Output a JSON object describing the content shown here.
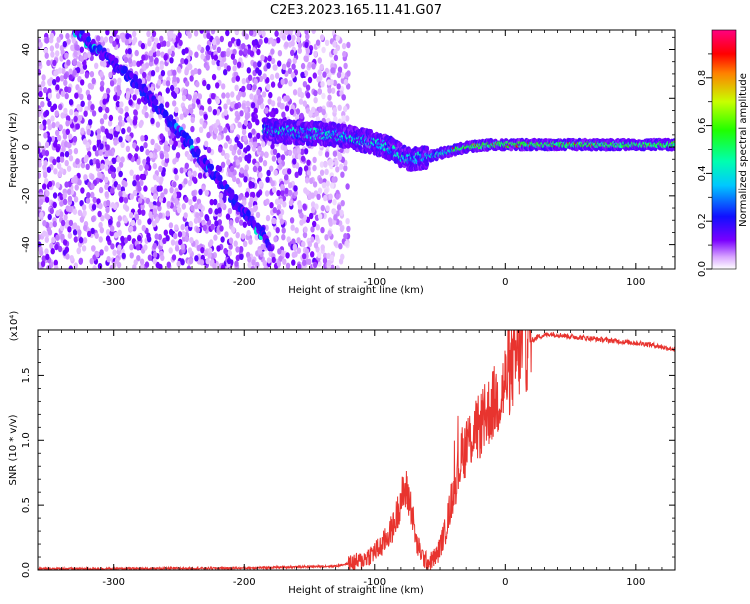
{
  "title": "C2E3.2023.165.11.41.G07",
  "colors": {
    "snr_line": "#e8342f",
    "axis": "#000000"
  },
  "chart_data": [
    {
      "type": "heatmap",
      "title": "C2E3.2023.165.11.41.G07",
      "xlabel": "Height of straight line (km)",
      "ylabel": "Frequency (Hz)",
      "xlim": [
        -358,
        130
      ],
      "ylim": [
        -50,
        48
      ],
      "x_ticks": [
        -300,
        -200,
        -100,
        0,
        100
      ],
      "y_ticks": [
        -40,
        -20,
        0,
        20,
        40
      ],
      "colorbar": {
        "label": "Normalized spectral amplitude",
        "range": [
          0,
          1
        ],
        "ticks": [
          "0.0",
          "0.2",
          "0.4",
          "0.6",
          "0.8"
        ],
        "colormap": "rainbow (white-violet-blue-cyan-green-yellow-red-magenta)"
      },
      "features": [
        {
          "name": "noise scatter",
          "x_range": [
            -358,
            -130
          ],
          "y_range": [
            -50,
            48
          ]
        },
        {
          "name": "diagonal trace",
          "points": [
            [
              -330,
              48
            ],
            [
              -280,
              25
            ],
            [
              -240,
              0
            ],
            [
              -210,
              -20
            ],
            [
              -180,
              -40
            ]
          ]
        },
        {
          "name": "main signal",
          "points": [
            [
              -185,
              7
            ],
            [
              -160,
              6
            ],
            [
              -130,
              5
            ],
            [
              -110,
              3
            ],
            [
              -90,
              0
            ],
            [
              -75,
              -5
            ],
            [
              -60,
              -4
            ],
            [
              -45,
              -2
            ],
            [
              -30,
              0
            ],
            [
              -10,
              1
            ],
            [
              0,
              1
            ],
            [
              30,
              1
            ],
            [
              70,
              1
            ],
            [
              100,
              1
            ],
            [
              130,
              1
            ]
          ]
        }
      ]
    },
    {
      "type": "line",
      "xlabel": "Height of straight line (km)",
      "ylabel": "SNR (10 * v/v)",
      "y_multiplier": "(x10⁴)",
      "xlim": [
        -358,
        130
      ],
      "ylim": [
        0,
        1.85
      ],
      "x_ticks": [
        -300,
        -200,
        -100,
        0,
        100
      ],
      "y_ticks": [
        "0.0",
        "0.5",
        "1.0",
        "1.5"
      ],
      "y_tick_values": [
        0,
        0.5,
        1.0,
        1.5
      ],
      "series": [
        {
          "x": [
            -358,
            -300,
            -200,
            -130,
            -110,
            -95,
            -85,
            -80,
            -76,
            -72,
            -68,
            -62,
            -58,
            -52,
            -46,
            -40,
            -34,
            -28,
            -24,
            -20,
            -14,
            -8,
            -3,
            0,
            5,
            10,
            18,
            25,
            35,
            50,
            70,
            90,
            110,
            130
          ],
          "y": [
            0.01,
            0.01,
            0.015,
            0.03,
            0.07,
            0.18,
            0.35,
            0.55,
            0.62,
            0.48,
            0.2,
            0.08,
            0.06,
            0.12,
            0.3,
            0.6,
            0.85,
            1.0,
            1.05,
            1.1,
            1.2,
            1.3,
            1.35,
            1.45,
            1.55,
            1.65,
            1.75,
            1.8,
            1.82,
            1.8,
            1.78,
            1.76,
            1.74,
            1.7
          ]
        }
      ]
    }
  ]
}
